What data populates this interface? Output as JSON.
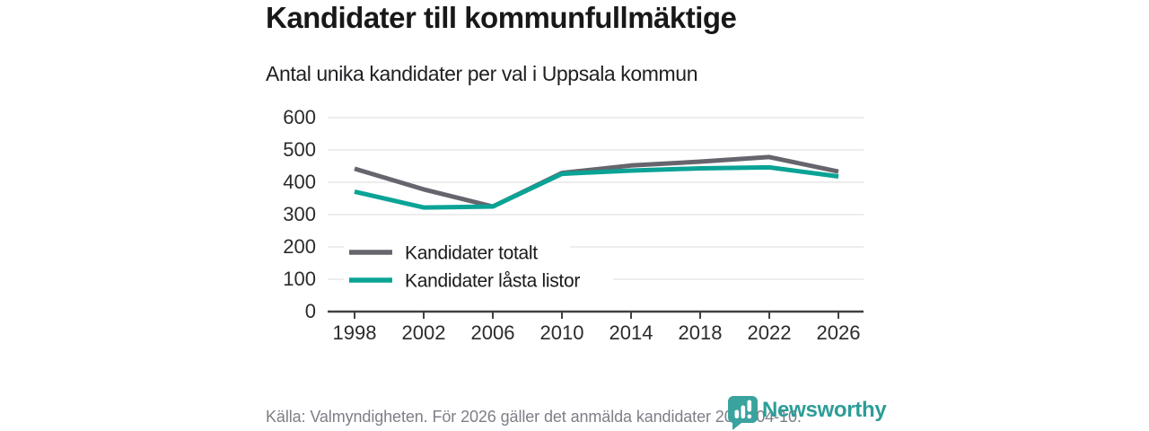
{
  "header": {
    "title": "Kandidater till kommunfullmäktige",
    "subtitle": "Antal unika kandidater per val i Uppsala kommun"
  },
  "footer": {
    "source_text": "Källa: Valmyndigheten. För 2026 gäller det anmälda kandidater 2026-04-10.",
    "brand": "Newsworthy",
    "brand_icon": "newsworthy-speech-bubble-barchart-icon"
  },
  "colors": {
    "series_total_gray": "#66656d",
    "series_locked_teal": "#0aa396",
    "gridline": "#e2e2e2",
    "axis": "#404040",
    "tick_label": "#2b2b2b",
    "legend_text": "#1a1a1a",
    "title_text": "#18181a",
    "muted_text": "#7e7e88",
    "logo_teal": "#3aa39d",
    "logo_text_teal": "#2c9d97"
  },
  "chart_data": {
    "type": "line",
    "title": "Kandidater till kommunfullmäktige",
    "subtitle": "Antal unika kandidater per val i Uppsala kommun",
    "categories": [
      "1998",
      "2002",
      "2006",
      "2010",
      "2014",
      "2018",
      "2022",
      "2026"
    ],
    "series": [
      {
        "name": "Kandidater totalt",
        "color": "#66656d",
        "values": [
          442,
          378,
          325,
          429,
          452,
          464,
          478,
          433
        ]
      },
      {
        "name": "Kandidater låsta listor",
        "color": "#0aa396",
        "values": [
          371,
          322,
          325,
          426,
          436,
          443,
          446,
          418
        ]
      }
    ],
    "xlabel": "",
    "ylabel": "",
    "ylim": [
      0,
      600
    ],
    "yticks": [
      0,
      100,
      200,
      300,
      400,
      500,
      600
    ],
    "grid": "horizontal",
    "legend_position": "inside-bottom-left"
  }
}
